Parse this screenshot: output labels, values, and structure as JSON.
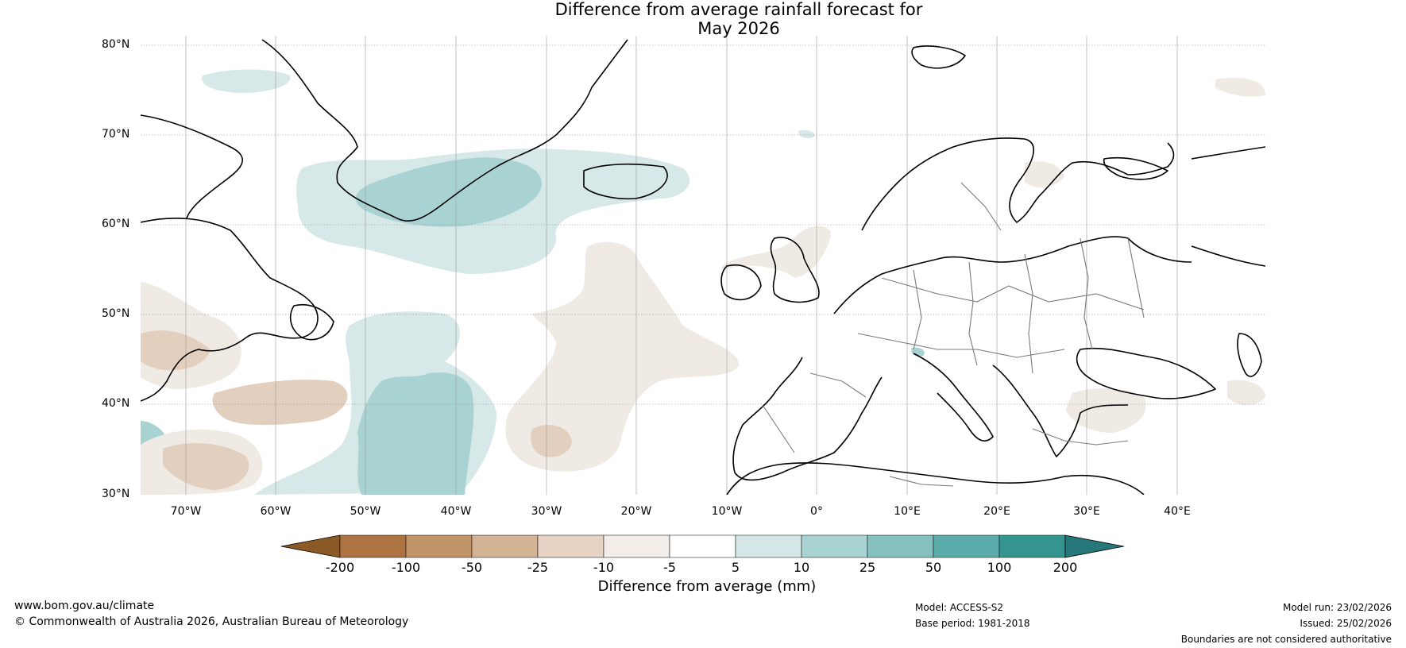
{
  "title": {
    "line1": "Difference from average rainfall forecast for",
    "line2": "May 2026"
  },
  "latitudes": [
    "80°N",
    "70°N",
    "60°N",
    "50°N",
    "40°N",
    "30°N"
  ],
  "longitudes": [
    "70°W",
    "60°W",
    "50°W",
    "40°W",
    "30°W",
    "20°W",
    "10°W",
    "0°",
    "10°E",
    "20°E",
    "30°E",
    "40°E"
  ],
  "colorbar": {
    "title": "Difference from average (mm)",
    "ticks": [
      "-200",
      "-100",
      "-50",
      "-25",
      "-10",
      "-5",
      "5",
      "10",
      "25",
      "50",
      "100",
      "200"
    ],
    "colors": [
      "#8c5a26",
      "#ad7442",
      "#c19467",
      "#d3b394",
      "#e6d3c3",
      "#f2ede8",
      "#ffffff",
      "#d5e8e7",
      "#a8d3d2",
      "#84c1bf",
      "#5bacab",
      "#34958f",
      "#26787b"
    ]
  },
  "colors": {
    "brown_light": "#f0eae5",
    "brown_mid": "#e3cfbe",
    "teal_light": "#d6e8e7",
    "teal_mid": "#a9d3d2",
    "coast": "#000000",
    "border": "#7a7a7a"
  },
  "footer": {
    "website": "www.bom.gov.au/climate",
    "copyright": "© Commonwealth of Australia 2026, Australian Bureau of Meteorology",
    "model": "Model: ACCESS-S2",
    "base_period": "Base period: 1981-2018",
    "model_run": "Model run: 23/02/2026",
    "issued": "Issued: 25/02/2026",
    "disclaimer": "Boundaries are not considered authoritative"
  }
}
